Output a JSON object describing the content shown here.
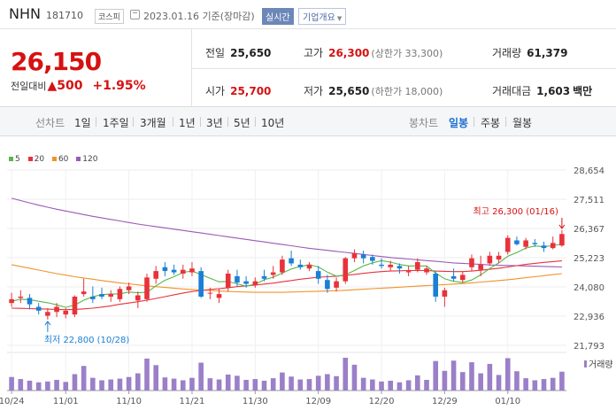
{
  "header": {
    "name": "NHN",
    "code": "181710",
    "market": "코스피",
    "date": "2023.01.16 기준(장마감)",
    "realtime": "실시간",
    "company_info": "기업개요"
  },
  "summary": {
    "price": "26,150",
    "change_label": "전일대비",
    "change_symbol": "▲",
    "change_value": "500",
    "change_pct": "+1.95%",
    "prev_close_label": "전일",
    "prev_close": "25,650",
    "high_label": "고가",
    "high": "26,300",
    "upper_limit": "(상한가 33,300)",
    "volume_label": "거래량",
    "volume": "61,379",
    "open_label": "시가",
    "open": "25,700",
    "low_label": "저가",
    "low": "25,650",
    "lower_limit": "(하한가 18,000)",
    "amount_label": "거래대금",
    "amount": "1,603",
    "amount_unit": "백만"
  },
  "toolbar": {
    "line_label": "선차트",
    "periods": [
      "1일",
      "1주일",
      "3개월",
      "1년",
      "3년",
      "5년",
      "10년"
    ],
    "candle_label": "봉차트",
    "candle_periods": [
      "일봉",
      "주봉",
      "월봉"
    ],
    "active_candle": "일봉"
  },
  "colors": {
    "up": "#e8323a",
    "down": "#1a7fd6",
    "ma5": "#54b848",
    "ma20": "#e8323a",
    "ma60": "#f0932b",
    "ma120": "#9b59b6",
    "volume": "#9b7fc8"
  },
  "chart_data": {
    "type": "candlestick",
    "legend": [
      "5",
      "20",
      "60",
      "120"
    ],
    "y_ticks": [
      28654,
      27511,
      26367,
      25223,
      24080,
      22936,
      21793
    ],
    "y_tick_labels": [
      "28,654",
      "27,511",
      "26,367",
      "25,223",
      "24,080",
      "22,936",
      "21,793"
    ],
    "ylim": [
      21793,
      28654
    ],
    "x_tick_labels": [
      "10/24",
      "11/01",
      "11/10",
      "11/21",
      "11/30",
      "12/09",
      "12/20",
      "12/29",
      "01/10"
    ],
    "x_tick_index": [
      0,
      6,
      13,
      20,
      27,
      34,
      41,
      48,
      55
    ],
    "high_annotation": "최고 26,300 (01/16)",
    "low_annotation": "최저 22,800 (10/28)",
    "volume_label": "거래량",
    "candles": [
      [
        23450,
        23850,
        23300,
        23600
      ],
      [
        23650,
        23950,
        23450,
        23700
      ],
      [
        23650,
        23800,
        23200,
        23400
      ],
      [
        23300,
        23450,
        23000,
        23150
      ],
      [
        22950,
        23250,
        22800,
        23100
      ],
      [
        23100,
        23450,
        22900,
        23300
      ],
      [
        23000,
        23250,
        22850,
        23150
      ],
      [
        23000,
        23750,
        22900,
        23700
      ],
      [
        23800,
        24400,
        23700,
        23900
      ],
      [
        23700,
        24100,
        23450,
        23600
      ],
      [
        23800,
        24050,
        23600,
        23700
      ],
      [
        23700,
        23950,
        23500,
        23800
      ],
      [
        23600,
        24100,
        23500,
        24000
      ],
      [
        23950,
        24250,
        23800,
        24100
      ],
      [
        23550,
        23900,
        23250,
        23750
      ],
      [
        23600,
        24600,
        23500,
        24450
      ],
      [
        24400,
        24900,
        24200,
        24700
      ],
      [
        24850,
        25050,
        24500,
        24700
      ],
      [
        24750,
        24950,
        24550,
        24650
      ],
      [
        24600,
        24950,
        24400,
        24750
      ],
      [
        24650,
        25050,
        24500,
        24800
      ],
      [
        24700,
        24850,
        23650,
        23700
      ],
      [
        23850,
        24050,
        23600,
        23850
      ],
      [
        23650,
        24000,
        23450,
        23800
      ],
      [
        24050,
        24750,
        23900,
        24600
      ],
      [
        24500,
        24750,
        24100,
        24250
      ],
      [
        24300,
        24500,
        24050,
        24200
      ],
      [
        24150,
        24450,
        24050,
        24300
      ],
      [
        24500,
        24750,
        24300,
        24400
      ],
      [
        24550,
        24900,
        24400,
        24650
      ],
      [
        24650,
        25300,
        24550,
        25150
      ],
      [
        25200,
        25500,
        24900,
        25000
      ],
      [
        24950,
        25150,
        24750,
        24850
      ],
      [
        24800,
        25050,
        24700,
        24950
      ],
      [
        24700,
        24900,
        24200,
        24400
      ],
      [
        24350,
        24550,
        23850,
        24000
      ],
      [
        24050,
        24450,
        23900,
        24300
      ],
      [
        24300,
        25250,
        24200,
        25200
      ],
      [
        25200,
        25550,
        25050,
        25400
      ],
      [
        25350,
        25500,
        25000,
        25200
      ],
      [
        25250,
        25350,
        24950,
        25100
      ],
      [
        24950,
        25200,
        24800,
        24900
      ],
      [
        24850,
        25100,
        24700,
        24950
      ],
      [
        24900,
        25000,
        24600,
        24800
      ],
      [
        24650,
        24900,
        24500,
        24700
      ],
      [
        24750,
        25200,
        24650,
        25050
      ],
      [
        24650,
        24900,
        24550,
        24800
      ],
      [
        24600,
        24700,
        23500,
        23700
      ],
      [
        23700,
        24050,
        23300,
        23950
      ],
      [
        24500,
        24800,
        24300,
        24400
      ],
      [
        24350,
        24700,
        24250,
        24550
      ],
      [
        24850,
        25350,
        24700,
        25200
      ],
      [
        24750,
        25300,
        24500,
        24950
      ],
      [
        25000,
        25450,
        24900,
        25300
      ],
      [
        25150,
        25450,
        25000,
        25300
      ],
      [
        25450,
        26100,
        25350,
        26000
      ],
      [
        25900,
        26050,
        25700,
        25750
      ],
      [
        25650,
        26000,
        25550,
        25900
      ],
      [
        25800,
        25950,
        25650,
        25750
      ],
      [
        25700,
        25850,
        25450,
        25600
      ],
      [
        25600,
        26050,
        25550,
        25800
      ],
      [
        25700,
        26300,
        25650,
        26150
      ]
    ],
    "ma5": [
      23520,
      23600,
      23580,
      23520,
      23460,
      23380,
      23280,
      23370,
      23560,
      23700,
      23780,
      23800,
      23810,
      23880,
      23850,
      23870,
      24120,
      24340,
      24480,
      24650,
      24700,
      24560,
      24420,
      24280,
      24290,
      24200,
      24110,
      24180,
      24360,
      24460,
      24620,
      24780,
      24880,
      24950,
      24860,
      24660,
      24500,
      24550,
      24720,
      24900,
      25020,
      25110,
      25050,
      24960,
      24900,
      24900,
      24900,
      24620,
      24400,
      24300,
      24250,
      24350,
      24550,
      24800,
      25020,
      25280,
      25420,
      25600,
      25680,
      25660,
      25690,
      25760
    ],
    "ma20": [
      23250,
      23240,
      23230,
      23220,
      23210,
      23200,
      23190,
      23200,
      23220,
      23250,
      23290,
      23340,
      23400,
      23450,
      23500,
      23560,
      23630,
      23700,
      23770,
      23840,
      23900,
      23940,
      23980,
      24010,
      24050,
      24090,
      24120,
      24150,
      24190,
      24230,
      24280,
      24330,
      24380,
      24420,
      24460,
      24480,
      24500,
      24530,
      24570,
      24610,
      24650,
      24680,
      24700,
      24710,
      24720,
      24720,
      24720,
      24700,
      24690,
      24680,
      24680,
      24700,
      24730,
      24770,
      24810,
      24860,
      24910,
      24960,
      25000,
      25040,
      25070,
      25100
    ],
    "ma60": [
      24950,
      24880,
      24810,
      24740,
      24670,
      24600,
      24540,
      24480,
      24430,
      24380,
      24330,
      24280,
      24240,
      24200,
      24160,
      24120,
      24090,
      24060,
      24030,
      24000,
      23980,
      23960,
      23940,
      23920,
      23900,
      23890,
      23880,
      23870,
      23870,
      23870,
      23870,
      23880,
      23890,
      23900,
      23910,
      23920,
      23930,
      23950,
      23970,
      23990,
      24010,
      24030,
      24050,
      24070,
      24090,
      24110,
      24130,
      24150,
      24170,
      24190,
      24210,
      24240,
      24270,
      24300,
      24330,
      24360,
      24400,
      24440,
      24480,
      24520,
      24560,
      24600
    ],
    "ma120": [
      27550,
      27460,
      27370,
      27280,
      27200,
      27120,
      27050,
      26980,
      26910,
      26840,
      26780,
      26720,
      26660,
      26600,
      26540,
      26490,
      26440,
      26390,
      26340,
      26290,
      26240,
      26190,
      26140,
      26090,
      26040,
      25990,
      25940,
      25890,
      25840,
      25790,
      25740,
      25690,
      25640,
      25590,
      25550,
      25510,
      25470,
      25430,
      25390,
      25350,
      25310,
      25270,
      25230,
      25200,
      25170,
      25140,
      25110,
      25080,
      25050,
      25020,
      25000,
      24980,
      24960,
      24940,
      24930,
      24920,
      24910,
      24900,
      24890,
      24880,
      24870,
      24860
    ],
    "volumes": [
      33,
      28,
      24,
      20,
      22,
      26,
      21,
      40,
      60,
      31,
      25,
      27,
      29,
      33,
      42,
      78,
      62,
      32,
      29,
      25,
      31,
      68,
      30,
      27,
      39,
      36,
      26,
      28,
      24,
      30,
      44,
      34,
      27,
      28,
      36,
      40,
      35,
      80,
      63,
      31,
      27,
      22,
      24,
      20,
      25,
      37,
      26,
      72,
      48,
      73,
      45,
      69,
      42,
      65,
      38,
      79,
      47,
      30,
      25,
      28,
      31,
      46
    ]
  }
}
